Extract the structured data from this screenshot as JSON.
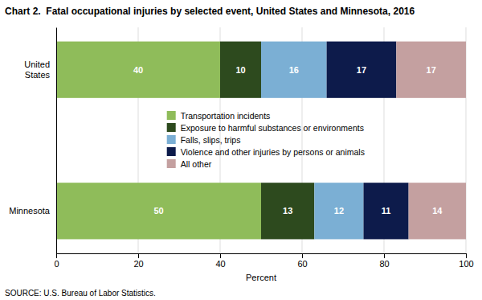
{
  "chart_data": {
    "type": "bar",
    "orientation": "horizontal",
    "stacked": true,
    "data_labels": true,
    "grid": true,
    "legend": "center",
    "title": "Chart 2.  Fatal occupational injuries by selected event, United States and Minnesota, 2016",
    "annotations": [
      "SOURCE: U.S. Bureau of Labor Statistics."
    ],
    "categories": [
      "United\nStates",
      "Minnesota"
    ],
    "series": [
      {
        "name": "Transportation incidents",
        "color": "#8fbc5a",
        "values": [
          40,
          50
        ]
      },
      {
        "name": "Exposure to harmful substances or environments",
        "color": "#2d4a1e",
        "values": [
          10,
          13
        ]
      },
      {
        "name": "Falls, slips, trips",
        "color": "#7bafd4",
        "values": [
          16,
          12
        ]
      },
      {
        "name": "Violence and other injuries by persons or animals",
        "color": "#0d1b4b",
        "values": [
          17,
          11
        ]
      },
      {
        "name": "All other",
        "color": "#c4a0a0",
        "values": [
          17,
          14
        ]
      }
    ],
    "xlabel": "Percent",
    "xlim": [
      0,
      100
    ],
    "xticks": [
      0,
      20,
      40,
      60,
      80,
      100
    ]
  }
}
